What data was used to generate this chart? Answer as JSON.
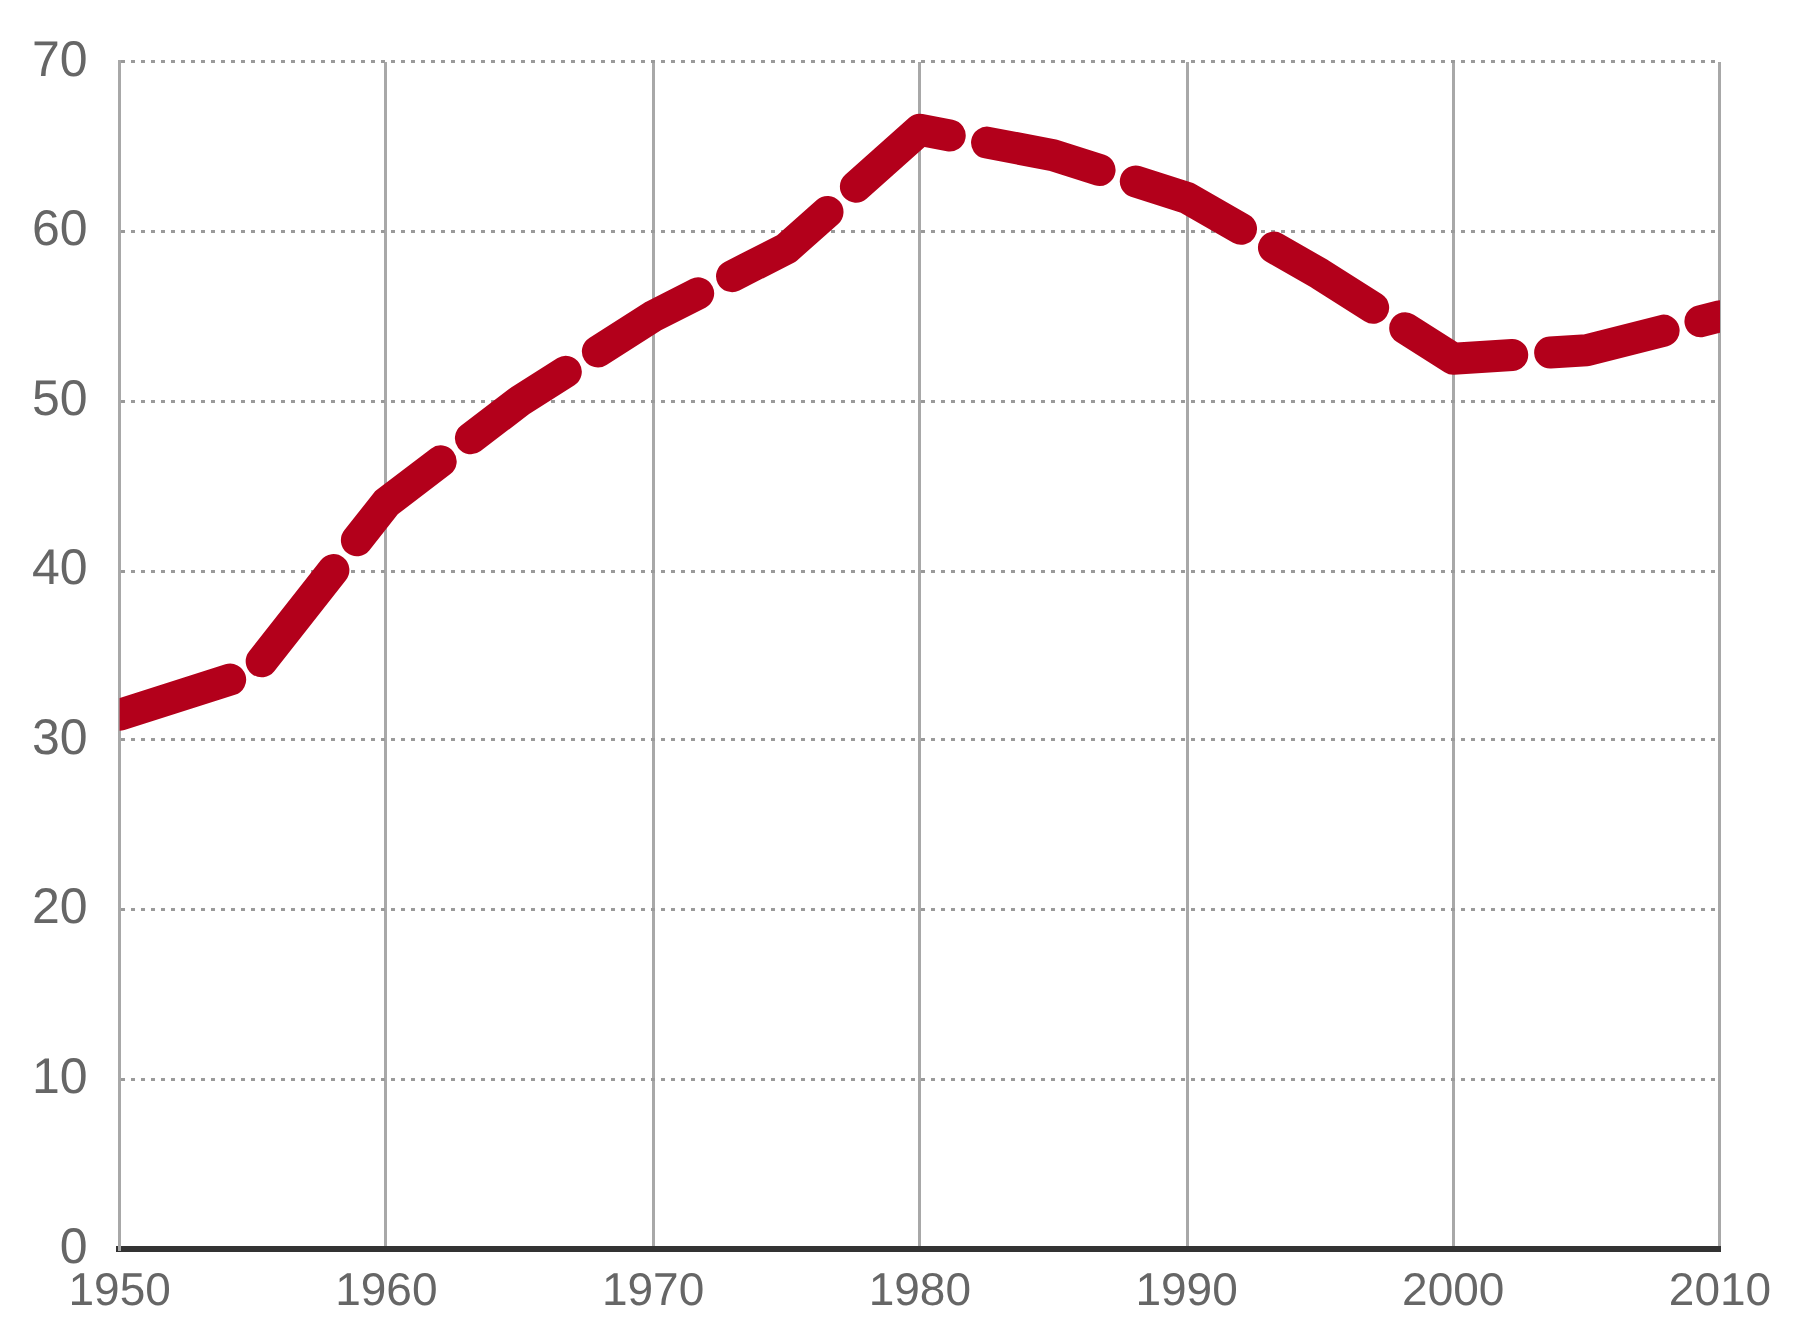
{
  "chart_data": {
    "type": "line",
    "x": [
      1950,
      1955,
      1960,
      1965,
      1970,
      1975,
      1980,
      1985,
      1990,
      1995,
      2000,
      2005,
      2010
    ],
    "values": [
      31.5,
      34,
      44,
      50,
      55,
      59,
      66,
      64.5,
      62,
      57.5,
      52.5,
      53,
      55
    ],
    "color": "#b3001b",
    "xlim": [
      1950,
      2010
    ],
    "xticks": [
      1950,
      1960,
      1970,
      1980,
      1990,
      2000,
      2010
    ],
    "ylim": [
      0,
      70
    ],
    "yticks": [
      0,
      10,
      20,
      30,
      40,
      50,
      60,
      70
    ],
    "grid": true,
    "line_style": "dashed",
    "marker": "none"
  }
}
